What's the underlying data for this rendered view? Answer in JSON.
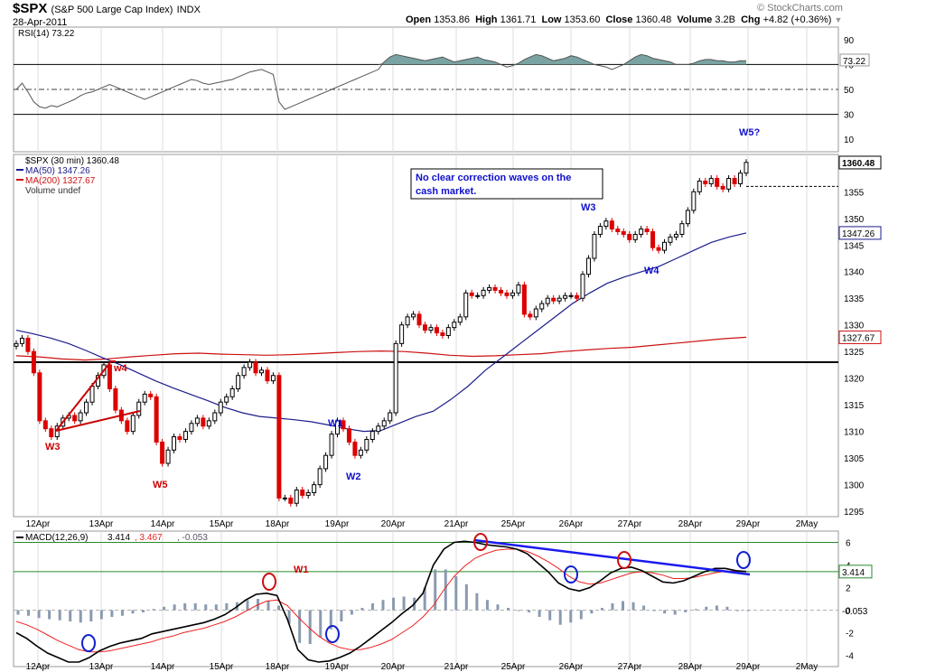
{
  "header": {
    "symbol": "$SPX",
    "description": "(S&P 500 Large Cap Index)",
    "exchange": "INDX",
    "date": "28-Apr-2011",
    "open_label": "Open",
    "open": "1353.86",
    "high_label": "High",
    "high": "1361.71",
    "low_label": "Low",
    "low": "1353.60",
    "close_label": "Close",
    "close": "1360.48",
    "volume_label": "Volume",
    "volume": "3.2B",
    "chg_label": "Chg",
    "chg": "+4.82 (+0.36%)",
    "watermark": "© StockCharts.com",
    "watermark_arrow": "▼"
  },
  "colors": {
    "price": "#000000",
    "ma50": "#1c1c8c",
    "ma200": "#cc1111",
    "down": "#dd0000",
    "rsi_fill": "#7aa3a3",
    "hline": "#000000",
    "wave_blue": "#1010cc",
    "wave_red": "#cc0000",
    "macd_signal": "#ee2222",
    "histogram": "#8a9ab0",
    "circle_blue": "#1020cc",
    "circle_red": "#cc1010",
    "trendline": "#1a1aee"
  },
  "x_axis": {
    "labels": [
      "12Apr",
      "13Apr",
      "14Apr",
      "15Apr",
      "18Apr",
      "19Apr",
      "20Apr",
      "21Apr",
      "25Apr",
      "26Apr",
      "27Apr",
      "28Apr",
      "29Apr",
      "2May"
    ]
  },
  "chart_data": [
    {
      "type": "line",
      "title": "RSI(14) 73.22",
      "ylim": [
        0,
        100
      ],
      "yticks": [
        10,
        30,
        50,
        70,
        90
      ],
      "reference_lines": [
        30,
        50,
        70
      ],
      "current_value": "73.22",
      "series": [
        {
          "name": "RSI(14)",
          "values": [
            50,
            55,
            48,
            40,
            36,
            35,
            37,
            36,
            38,
            40,
            42,
            45,
            47,
            48,
            50,
            52,
            54,
            52,
            50,
            48,
            46,
            44,
            42,
            44,
            46,
            48,
            50,
            52,
            54,
            56,
            58,
            57,
            55,
            54,
            55,
            56,
            57,
            58,
            60,
            62,
            64,
            65,
            66,
            64,
            62,
            40,
            34,
            36,
            38,
            40,
            42,
            44,
            46,
            48,
            50,
            52,
            54,
            56,
            58,
            60,
            62,
            64,
            66,
            72,
            76,
            78,
            77,
            76,
            75,
            74,
            73,
            74,
            75,
            76,
            74,
            72,
            73,
            74,
            75,
            76,
            74,
            73,
            72,
            70,
            68,
            69,
            71,
            74,
            76,
            78,
            77,
            75,
            73,
            74,
            75,
            77,
            76,
            74,
            72,
            70,
            69,
            68,
            66,
            68,
            70,
            73,
            76,
            78,
            77,
            75,
            74,
            73,
            72,
            70,
            70,
            70,
            71,
            73,
            74,
            74,
            73,
            73,
            72,
            72,
            73,
            73
          ]
        }
      ]
    },
    {
      "type": "candlestick",
      "title": "$SPX (30 min) 1360.48",
      "ylim": [
        1294,
        1362
      ],
      "yticks": [
        1295,
        1300,
        1305,
        1310,
        1315,
        1320,
        1325,
        1330,
        1335,
        1340,
        1345,
        1350,
        1355
      ],
      "last_price": "1360.48",
      "ma50_value": "1347.26",
      "ma200_value": "1327.67",
      "horizontal_line": 1323,
      "legend": [
        {
          "text": "$SPX (30 min) 1360.48"
        },
        {
          "text": "MA(50) 1347.26"
        },
        {
          "text": "MA(200) 1327.67"
        },
        {
          "text": "Volume undef"
        }
      ],
      "series": [
        {
          "name": "$SPX",
          "values": [
            1326.5,
            1327.5,
            1325.0,
            1321.0,
            1312.0,
            1310.5,
            1309.0,
            1311.0,
            1312.5,
            1313.0,
            1312.0,
            1313.5,
            1315.5,
            1318.5,
            1320.5,
            1322.5,
            1318.0,
            1314.0,
            1312.0,
            1310.0,
            1313.0,
            1315.5,
            1317.0,
            1316.5,
            1308.0,
            1304.0,
            1306.5,
            1309.0,
            1308.5,
            1310.0,
            1311.5,
            1312.5,
            1311.0,
            1312.0,
            1313.5,
            1315.5,
            1316.5,
            1318.0,
            1320.5,
            1322.0,
            1323.0,
            1321.0,
            1321.5,
            1319.5,
            1320.5,
            1297.5,
            1297.5,
            1296.5,
            1299.0,
            1298.0,
            1298.5,
            1300.0,
            1303.0,
            1305.5,
            1309.5,
            1312.0,
            1310.5,
            1308.0,
            1305.5,
            1306.5,
            1308.5,
            1310.0,
            1311.0,
            1312.0,
            1313.5,
            1326.5,
            1330.0,
            1331.5,
            1332.0,
            1330.0,
            1329.0,
            1329.5,
            1328.5,
            1328.0,
            1329.5,
            1330.5,
            1331.5,
            1336.0,
            1335.5,
            1335.5,
            1336.5,
            1337.0,
            1336.5,
            1336.0,
            1335.5,
            1336.0,
            1337.5,
            1332.0,
            1331.5,
            1333.0,
            1334.0,
            1335.0,
            1334.5,
            1335.0,
            1335.5,
            1335.5,
            1335.0,
            1339.5,
            1342.5,
            1347.0,
            1348.5,
            1349.5,
            1348.0,
            1347.5,
            1347.0,
            1346.0,
            1347.0,
            1348.0,
            1347.5,
            1344.5,
            1344.0,
            1345.5,
            1346.5,
            1347.0,
            1349.0,
            1351.5,
            1355.0,
            1357.0,
            1356.5,
            1357.5,
            1356.0,
            1355.5,
            1357.5,
            1356.5,
            1358.5,
            1360.5
          ]
        },
        {
          "name": "MA(50)",
          "values": [
            1329,
            1328.3,
            1327.5,
            1326.5,
            1325.2,
            1323.8,
            1322.5,
            1321.0,
            1319.5,
            1318.2,
            1317.0,
            1315.8,
            1314.5,
            1313.5,
            1312.8,
            1312.5,
            1312.2,
            1311.8,
            1311.2,
            1310.5,
            1310.0,
            1310.2,
            1311.5,
            1312.8,
            1313.8,
            1316.0,
            1318.5,
            1321.5,
            1324.0,
            1326.5,
            1329.0,
            1331.5,
            1334.0,
            1336.0,
            1337.8,
            1339.0,
            1340.0,
            1341.0,
            1342.5,
            1344.0,
            1345.5,
            1346.5,
            1347.26
          ]
        },
        {
          "name": "MA(200)",
          "values": [
            1324.2,
            1324.0,
            1323.6,
            1323.4,
            1323.6,
            1324.0,
            1324.3,
            1324.6,
            1324.7,
            1324.5,
            1324.4,
            1324.3,
            1324.4,
            1324.6,
            1324.8,
            1325.0,
            1325.1,
            1325.0,
            1324.7,
            1324.3,
            1324.1,
            1324.2,
            1324.4,
            1324.6,
            1325.0,
            1325.3,
            1325.6,
            1325.8,
            1326.2,
            1326.6,
            1327.0,
            1327.4,
            1327.67
          ]
        }
      ],
      "annotations": [
        {
          "text": "W5?",
          "color": "blue",
          "target": "rsi"
        },
        {
          "text": "W3",
          "color": "blue"
        },
        {
          "text": "W4",
          "color": "blue"
        },
        {
          "text": "W1",
          "color": "blue"
        },
        {
          "text": "W2",
          "color": "blue"
        },
        {
          "text": "w4",
          "color": "red"
        },
        {
          "text": "W3",
          "color": "red"
        },
        {
          "text": "W5",
          "color": "red"
        }
      ],
      "note": "No clear correction waves on the cash market."
    },
    {
      "type": "line",
      "title": "MACD(12,26,9) 3.414, 3.467, -0.053",
      "ylim": [
        -5,
        7
      ],
      "yticks": [
        6,
        4,
        2,
        0,
        -2,
        -4
      ],
      "reference_lines": [
        0,
        3.414,
        6
      ],
      "legend": [
        {
          "text": "MACD(12,26,9)"
        },
        {
          "text": "3.414"
        },
        {
          "text": "3.467"
        },
        {
          "text": "-0.053"
        }
      ],
      "current_macd": "3.414",
      "current_hist": "-0.053",
      "annotation": "W1",
      "series": [
        {
          "name": "MACD",
          "values": [
            -2.0,
            -2.5,
            -3.2,
            -3.8,
            -4.2,
            -4.6,
            -4.6,
            -4.2,
            -3.6,
            -3.2,
            -2.9,
            -2.7,
            -2.5,
            -2.1,
            -1.9,
            -1.7,
            -1.5,
            -1.3,
            -1.1,
            -0.8,
            -0.4,
            0.2,
            0.9,
            1.4,
            1.5,
            1.3,
            -0.8,
            -3.5,
            -4.4,
            -4.6,
            -4.5,
            -4.2,
            -3.8,
            -3.2,
            -2.5,
            -1.8,
            -1.1,
            -0.3,
            0.4,
            1.5,
            4.0,
            5.4,
            6.0,
            6.1,
            6.0,
            5.8,
            5.7,
            5.6,
            5.4,
            5.0,
            4.2,
            3.4,
            2.4,
            1.9,
            1.7,
            2.0,
            2.6,
            3.3,
            3.7,
            3.8,
            3.5,
            3.0,
            2.5,
            2.4,
            2.6,
            3.0,
            3.4,
            3.7,
            3.7,
            3.5,
            3.414
          ]
        },
        {
          "name": "Signal",
          "values": [
            -1.0,
            -1.3,
            -1.7,
            -2.2,
            -2.7,
            -3.1,
            -3.5,
            -3.7,
            -3.7,
            -3.6,
            -3.4,
            -3.2,
            -3.0,
            -2.8,
            -2.5,
            -2.3,
            -2.0,
            -1.8,
            -1.6,
            -1.3,
            -1.0,
            -0.6,
            -0.1,
            0.4,
            0.8,
            0.9,
            0.4,
            -0.6,
            -1.5,
            -2.3,
            -2.9,
            -3.3,
            -3.5,
            -3.5,
            -3.3,
            -3.0,
            -2.6,
            -2.0,
            -1.4,
            -0.6,
            0.4,
            1.8,
            3.0,
            3.9,
            4.6,
            5.0,
            5.3,
            5.4,
            5.4,
            5.2,
            4.8,
            4.3,
            3.7,
            3.0,
            2.5,
            2.3,
            2.4,
            2.7,
            3.0,
            3.3,
            3.4,
            3.3,
            3.1,
            2.8,
            2.8,
            2.9,
            3.1,
            3.3,
            3.45,
            3.467,
            3.467
          ]
        },
        {
          "name": "Histogram",
          "values": [
            -0.4,
            -0.5,
            -0.7,
            -0.8,
            -0.9,
            -1.0,
            -1.1,
            -1.0,
            -0.8,
            -0.6,
            -0.5,
            -0.3,
            -0.2,
            0.1,
            0.3,
            0.5,
            0.6,
            0.6,
            0.5,
            0.5,
            0.6,
            0.7,
            0.9,
            1.0,
            0.8,
            0.4,
            -1.2,
            -2.9,
            -3.0,
            -2.4,
            -1.7,
            -1.0,
            -0.4,
            0.2,
            0.6,
            0.9,
            1.1,
            1.2,
            1.1,
            2.0,
            3.6,
            3.6,
            3.0,
            2.3,
            1.5,
            0.9,
            0.5,
            0.2,
            0.0,
            -0.2,
            -0.6,
            -0.9,
            -1.3,
            -1.1,
            -0.8,
            -0.3,
            0.2,
            0.6,
            0.8,
            0.7,
            0.4,
            0.0,
            -0.3,
            -0.4,
            -0.2,
            0.1,
            0.3,
            0.4,
            0.3,
            0.0,
            -0.053
          ]
        }
      ]
    }
  ]
}
